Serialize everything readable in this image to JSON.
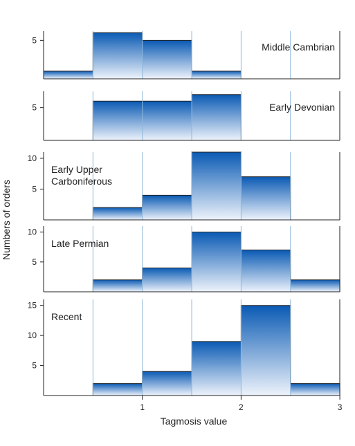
{
  "chart_data": {
    "type": "bar",
    "subtype": "stacked-panel-histogram",
    "xlabel": "Tagmosis value",
    "ylabel": "Numbers of orders",
    "x_ticks": [
      1,
      2,
      3
    ],
    "x_tick_labels": [
      "1",
      "2",
      "3"
    ],
    "xlim": [
      0,
      3
    ],
    "bin_edges": [
      0,
      0.5,
      1,
      1.5,
      2,
      2.5,
      3
    ],
    "gridlines": [
      0.5,
      1,
      1.5,
      2,
      2.5
    ],
    "colors": {
      "fill_dark": "#0a5ab4",
      "fill_light": "#eef3fb",
      "grid": "#8fb8dc",
      "outline": "#222222"
    },
    "panels": [
      {
        "label": "Middle Cambrian",
        "label_position": "top-right",
        "ylim": [
          0,
          6.2
        ],
        "y_ticks": [
          5
        ],
        "y_tick_labels": [
          "5"
        ],
        "values": [
          1,
          6,
          5,
          1,
          0,
          0
        ]
      },
      {
        "label": "Early Devonian",
        "label_position": "top-right",
        "ylim": [
          0,
          7.5
        ],
        "y_ticks": [
          5
        ],
        "y_tick_labels": [
          "5"
        ],
        "values": [
          0,
          6,
          6,
          7,
          0,
          0
        ]
      },
      {
        "label": "Early Upper\nCarboniferous",
        "label_position": "top-left",
        "ylim": [
          0,
          11
        ],
        "y_ticks": [
          5,
          10
        ],
        "y_tick_labels": [
          "5",
          "10"
        ],
        "values": [
          0,
          2,
          4,
          11,
          7,
          0
        ]
      },
      {
        "label": "Late Permian",
        "label_position": "top-left",
        "ylim": [
          0,
          11
        ],
        "y_ticks": [
          5,
          10
        ],
        "y_tick_labels": [
          "5",
          "10"
        ],
        "values": [
          0,
          2,
          4,
          10,
          7,
          2
        ]
      },
      {
        "label": "Recent",
        "label_position": "top-left",
        "ylim": [
          0,
          16
        ],
        "y_ticks": [
          5,
          10,
          15
        ],
        "y_tick_labels": [
          "5",
          "10",
          "15"
        ],
        "values": [
          0,
          2,
          4,
          9,
          15,
          2
        ]
      }
    ]
  }
}
